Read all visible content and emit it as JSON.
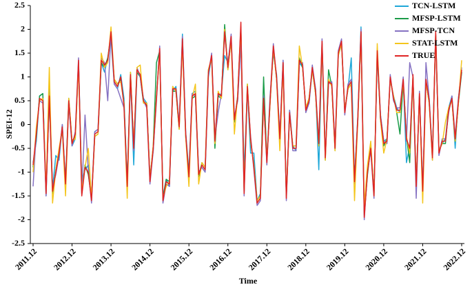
{
  "chart_data": {
    "type": "line",
    "x_label": "Time",
    "y_label": "SPEI-12",
    "ylim": [
      -2.5,
      2.5
    ],
    "yticks": [
      -2.5,
      -2,
      -1.5,
      -1,
      -0.5,
      0,
      0.5,
      1,
      1.5,
      2,
      2.5
    ],
    "grid": false,
    "legend": "upper right",
    "categories": [
      "2011.12",
      null,
      null,
      null,
      null,
      null,
      null,
      null,
      null,
      null,
      null,
      null,
      "2012.12",
      null,
      null,
      null,
      null,
      null,
      null,
      null,
      null,
      null,
      null,
      null,
      "2013.12",
      null,
      null,
      null,
      null,
      null,
      null,
      null,
      null,
      null,
      null,
      null,
      "2014.12",
      null,
      null,
      null,
      null,
      null,
      null,
      null,
      null,
      null,
      null,
      null,
      "2015.12",
      null,
      null,
      null,
      null,
      null,
      null,
      null,
      null,
      null,
      null,
      null,
      "2016.12",
      null,
      null,
      null,
      null,
      null,
      null,
      null,
      null,
      null,
      null,
      null,
      "2017.12",
      null,
      null,
      null,
      null,
      null,
      null,
      null,
      null,
      null,
      null,
      null,
      "2018.12",
      null,
      null,
      null,
      null,
      null,
      null,
      null,
      null,
      null,
      null,
      null,
      "2019.12",
      null,
      null,
      null,
      null,
      null,
      null,
      null,
      null,
      null,
      null,
      null,
      "2020.12",
      null,
      null,
      null,
      null,
      null,
      null,
      null,
      null,
      null,
      null,
      null,
      "2021.12",
      null,
      null,
      null,
      null,
      null,
      null,
      null,
      null,
      null,
      null,
      null,
      "2022.12"
    ],
    "series": [
      {
        "name": "TCN-LSTM",
        "color": "#1ea7d8",
        "values": [
          -0.8,
          -0.35,
          0.6,
          0.65,
          -1.5,
          0.75,
          -1.35,
          -0.65,
          -0.75,
          0.0,
          -1.2,
          0.45,
          -0.45,
          -0.3,
          1.3,
          -1.2,
          -0.95,
          -0.85,
          -1.55,
          -0.15,
          -0.1,
          1.3,
          1.1,
          1.4,
          1.8,
          0.85,
          0.75,
          1.05,
          0.55,
          -1.25,
          1.0,
          -0.85,
          1.1,
          1.0,
          0.55,
          0.45,
          -1.1,
          -0.55,
          0.6,
          1.55,
          -1.5,
          -1.15,
          -1.3,
          0.7,
          0.8,
          0.0,
          1.9,
          -0.15,
          -1.0,
          0.65,
          0.7,
          -1.0,
          -0.9,
          -1.0,
          1.0,
          1.45,
          -0.3,
          0.6,
          0.65,
          1.45,
          1.3,
          1.8,
          0.15,
          0.5,
          1.8,
          -1.0,
          0.75,
          -0.6,
          -0.6,
          -1.6,
          -1.45,
          0.5,
          -0.75,
          0.6,
          1.5,
          1.05,
          -0.25,
          1.35,
          -1.5,
          0.3,
          -0.45,
          -0.55,
          1.3,
          1.2,
          0.35,
          0.45,
          1.15,
          0.75,
          -0.95,
          1.7,
          -0.65,
          0.95,
          0.8,
          -0.45,
          1.45,
          1.7,
          0.3,
          0.75,
          1.4,
          -1.15,
          0.15,
          2.05,
          -1.85,
          -0.9,
          -0.55,
          -1.4,
          1.45,
          0.2,
          -0.35,
          -0.3,
          0.95,
          0.6,
          0.35,
          0.25,
          0.9,
          -0.8,
          -0.45,
          1.0,
          -1.25,
          0.6,
          -1.35,
          0.9,
          0.55,
          -0.65,
          1.85,
          -0.55,
          -0.4,
          -0.3,
          0.35,
          0.6,
          -0.5,
          0.55,
          1.1
        ]
      },
      {
        "name": "MFSP-LSTM",
        "color": "#1a9b48",
        "values": [
          -0.9,
          -0.25,
          0.6,
          0.65,
          -1.4,
          0.55,
          -1.45,
          -0.95,
          -0.55,
          -0.1,
          -1.2,
          0.55,
          -0.35,
          -0.25,
          1.3,
          -1.45,
          -0.85,
          -1.05,
          -1.55,
          -0.25,
          -0.2,
          1.3,
          1.2,
          1.4,
          1.9,
          0.95,
          0.85,
          0.95,
          0.45,
          -1.25,
          1.1,
          -0.45,
          1.1,
          1.0,
          0.45,
          0.45,
          -1.15,
          -0.45,
          1.3,
          1.55,
          -1.55,
          -1.15,
          -1.2,
          0.7,
          0.7,
          -0.1,
          1.75,
          -0.25,
          -1.05,
          0.55,
          0.6,
          -1.1,
          -0.8,
          -0.9,
          1.15,
          1.4,
          -0.5,
          0.6,
          0.55,
          2.1,
          1.15,
          1.8,
          0.05,
          0.6,
          2.05,
          -1.4,
          0.85,
          -0.35,
          -0.85,
          -1.6,
          -1.5,
          1.0,
          -0.75,
          0.45,
          1.6,
          0.95,
          -0.35,
          1.25,
          -1.5,
          0.2,
          -0.45,
          -0.45,
          1.4,
          1.2,
          0.35,
          0.55,
          1.15,
          0.65,
          -0.45,
          1.7,
          -0.75,
          1.15,
          0.8,
          -0.55,
          1.45,
          1.7,
          0.3,
          0.75,
          0.85,
          -1.15,
          0.05,
          1.9,
          -1.9,
          -1.05,
          -0.45,
          -1.45,
          1.5,
          0.1,
          -0.45,
          -0.3,
          0.95,
          0.6,
          0.25,
          -0.2,
          0.9,
          -0.25,
          -0.8,
          1.0,
          -1.25,
          0.6,
          -1.35,
          0.9,
          0.45,
          -0.65,
          1.9,
          -0.55,
          -0.4,
          -0.4,
          0.35,
          0.5,
          -0.35,
          0.45,
          1.1
        ]
      },
      {
        "name": "MFSP-TCN",
        "color": "#8571c2",
        "values": [
          -1.3,
          -0.15,
          0.5,
          0.45,
          -1.5,
          0.65,
          -1.35,
          -1.05,
          -0.65,
          0.0,
          -1.3,
          0.45,
          -0.45,
          -0.15,
          1.4,
          -1.45,
          0.2,
          -0.95,
          -1.65,
          -0.15,
          -0.1,
          1.4,
          1.3,
          0.5,
          1.95,
          0.85,
          0.75,
          0.55,
          0.35,
          -1.35,
          1.0,
          -0.55,
          1.2,
          1.0,
          0.5,
          0.35,
          -1.25,
          -0.55,
          0.5,
          1.65,
          -1.65,
          -1.25,
          -1.3,
          0.8,
          0.7,
          0.0,
          1.85,
          -0.15,
          -1.15,
          0.65,
          0.6,
          -1.0,
          -0.9,
          -1.0,
          1.05,
          1.5,
          -0.3,
          0.25,
          0.65,
          1.9,
          1.25,
          1.9,
          0.15,
          0.5,
          1.7,
          -1.5,
          0.75,
          -0.25,
          -0.95,
          -1.7,
          -1.6,
          0.6,
          -0.85,
          0.55,
          1.7,
          0.95,
          -0.25,
          1.35,
          -1.6,
          0.3,
          -0.55,
          -0.55,
          1.3,
          1.3,
          0.25,
          0.45,
          1.25,
          0.75,
          -0.35,
          1.8,
          -0.65,
          0.85,
          0.9,
          -0.45,
          1.55,
          1.8,
          0.2,
          0.85,
          0.95,
          -1.25,
          0.15,
          2.0,
          -2.0,
          -0.95,
          -0.55,
          -1.55,
          1.6,
          0.2,
          -0.35,
          -0.4,
          1.05,
          0.5,
          0.35,
          0.35,
          1.0,
          -0.35,
          1.3,
          1.0,
          -1.55,
          0.7,
          -1.45,
          1.3,
          0.55,
          -0.75,
          1.9,
          -0.65,
          -0.3,
          -0.3,
          0.25,
          0.6,
          -0.25,
          0.55,
          1.2
        ]
      },
      {
        "name": "STAT-LSTM",
        "color": "#f4c51c",
        "values": [
          -1.0,
          -0.05,
          0.5,
          0.55,
          -1.4,
          1.2,
          -1.65,
          -0.95,
          -0.5,
          -0.1,
          -1.5,
          0.55,
          -0.35,
          -0.3,
          1.25,
          -1.4,
          -0.9,
          -0.5,
          -1.55,
          -0.25,
          -0.2,
          1.5,
          1.2,
          1.3,
          2.05,
          0.95,
          0.85,
          0.9,
          0.45,
          -1.55,
          1.1,
          -0.45,
          1.2,
          1.25,
          0.45,
          0.45,
          -1.15,
          -0.45,
          0.6,
          1.5,
          -1.55,
          -1.3,
          -1.2,
          0.8,
          0.7,
          -0.1,
          1.7,
          -0.25,
          -1.3,
          0.55,
          0.85,
          -1.25,
          -0.8,
          -0.9,
          1.15,
          1.4,
          -0.4,
          0.7,
          0.55,
          2.0,
          1.15,
          1.8,
          -0.2,
          0.6,
          2.05,
          -1.4,
          0.85,
          -0.35,
          -0.85,
          -1.6,
          -1.5,
          0.5,
          -0.75,
          0.45,
          1.6,
          0.95,
          -0.55,
          1.25,
          -1.5,
          0.2,
          -0.45,
          -0.45,
          1.65,
          1.2,
          0.35,
          0.55,
          1.15,
          0.65,
          -0.45,
          1.7,
          -0.75,
          0.95,
          0.8,
          -0.55,
          1.45,
          1.7,
          0.3,
          0.75,
          0.85,
          -1.6,
          0.05,
          1.9,
          -1.7,
          -0.85,
          -0.35,
          -1.5,
          1.7,
          0.1,
          -0.6,
          -0.3,
          0.95,
          0.6,
          0.25,
          0.25,
          0.9,
          -0.25,
          -0.6,
          1.0,
          -1.25,
          0.6,
          -1.65,
          0.9,
          0.45,
          -0.75,
          1.9,
          -0.55,
          -0.4,
          0.05,
          0.35,
          0.5,
          -0.35,
          0.45,
          1.35
        ]
      },
      {
        "name": "TRUE",
        "color": "#e02424",
        "values": [
          -0.85,
          -0.2,
          0.55,
          0.5,
          -1.45,
          0.6,
          -1.4,
          -1.0,
          -0.6,
          -0.05,
          -1.25,
          0.5,
          -0.4,
          -0.2,
          1.35,
          -1.5,
          -0.9,
          -1.0,
          -1.6,
          -0.2,
          -0.15,
          1.35,
          1.25,
          1.35,
          1.95,
          0.9,
          0.8,
          1.0,
          0.4,
          -1.3,
          1.05,
          -0.5,
          1.15,
          1.05,
          0.5,
          0.4,
          -1.2,
          -0.5,
          0.55,
          1.6,
          -1.6,
          -1.2,
          -1.25,
          0.75,
          0.75,
          -0.05,
          1.8,
          -0.2,
          -1.1,
          0.6,
          0.65,
          -1.05,
          -0.85,
          -0.95,
          1.1,
          1.45,
          -0.35,
          0.65,
          0.6,
          1.95,
          1.2,
          1.85,
          0.1,
          0.55,
          2.15,
          -1.45,
          0.8,
          -0.3,
          -0.9,
          -1.65,
          -1.55,
          0.55,
          -0.8,
          0.5,
          1.65,
          1.0,
          -0.3,
          1.3,
          -1.55,
          0.25,
          -0.5,
          -0.5,
          1.35,
          1.25,
          0.3,
          0.5,
          1.2,
          0.7,
          -0.4,
          1.75,
          -0.7,
          0.9,
          0.85,
          -0.5,
          1.5,
          1.75,
          0.25,
          0.8,
          0.9,
          -1.2,
          0.1,
          1.95,
          -1.95,
          -1.0,
          -0.5,
          -1.5,
          1.55,
          0.15,
          -0.4,
          -0.35,
          1.0,
          0.55,
          0.3,
          0.3,
          0.95,
          -0.3,
          -0.5,
          1.05,
          -1.3,
          0.65,
          -1.4,
          0.95,
          0.5,
          -0.7,
          1.95,
          -0.6,
          -0.35,
          -0.35,
          0.3,
          0.55,
          -0.3,
          0.5,
          1.15
        ]
      }
    ]
  }
}
